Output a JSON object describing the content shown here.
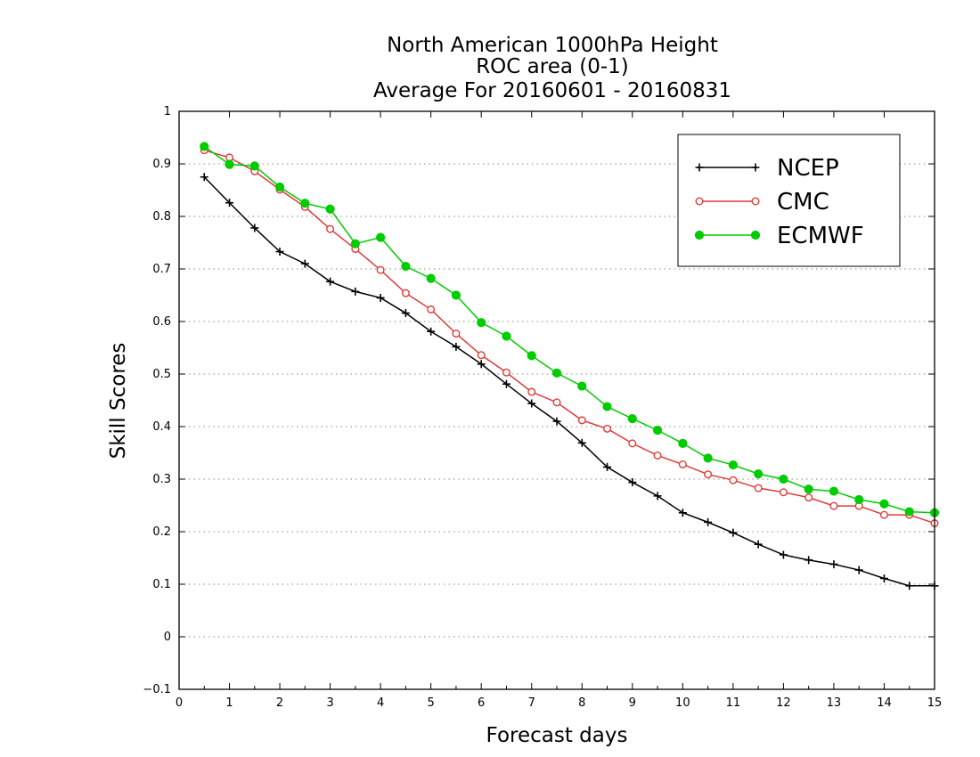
{
  "chart_data": {
    "type": "line",
    "title": [
      "North American 1000hPa Height",
      "ROC area (0-1)",
      "Average For 20160601 - 20160831"
    ],
    "xlabel": "Forecast days",
    "ylabel": "Skill Scores",
    "xlim": [
      0,
      15
    ],
    "ylim": [
      -0.1,
      1
    ],
    "xticks": [
      "0",
      "1",
      "2",
      "3",
      "4",
      "5",
      "6",
      "7",
      "8",
      "9",
      "10",
      "11",
      "12",
      "13",
      "14",
      "15"
    ],
    "yticks": [
      "−0.1",
      "0",
      "0.1",
      "0.2",
      "0.3",
      "0.4",
      "0.5",
      "0.6",
      "0.7",
      "0.8",
      "0.9",
      "1"
    ],
    "grid": "horizontal dotted",
    "legend_position": "top-right",
    "x": [
      0.5,
      1,
      1.5,
      2,
      2.5,
      3,
      3.5,
      4,
      4.5,
      5,
      5.5,
      6,
      6.5,
      7,
      7.5,
      8,
      8.5,
      9,
      9.5,
      10,
      10.5,
      11,
      11.5,
      12,
      12.5,
      13,
      13.5,
      14,
      14.5,
      15
    ],
    "series": [
      {
        "name": "NCEP",
        "color": "#000000",
        "marker": "plus",
        "values": [
          0.875,
          0.826,
          0.778,
          0.733,
          0.71,
          0.676,
          0.657,
          0.645,
          0.616,
          0.581,
          0.552,
          0.519,
          0.481,
          0.444,
          0.41,
          0.369,
          0.323,
          0.294,
          0.268,
          0.236,
          0.218,
          0.198,
          0.176,
          0.156,
          0.146,
          0.138,
          0.127,
          0.111,
          0.097,
          0.097
        ]
      },
      {
        "name": "CMC",
        "color": "#e23a3a",
        "marker": "open-circle",
        "values": [
          0.926,
          0.912,
          0.886,
          0.851,
          0.818,
          0.776,
          0.738,
          0.698,
          0.654,
          0.623,
          0.577,
          0.536,
          0.503,
          0.466,
          0.446,
          0.412,
          0.396,
          0.368,
          0.345,
          0.328,
          0.309,
          0.298,
          0.283,
          0.275,
          0.265,
          0.249,
          0.249,
          0.232,
          0.232,
          0.216
        ]
      },
      {
        "name": "ECMWF",
        "color": "#00cc00",
        "marker": "filled-circle",
        "values": [
          0.933,
          0.899,
          0.896,
          0.856,
          0.825,
          0.814,
          0.748,
          0.76,
          0.705,
          0.682,
          0.65,
          0.598,
          0.572,
          0.535,
          0.502,
          0.477,
          0.438,
          0.415,
          0.393,
          0.368,
          0.34,
          0.327,
          0.31,
          0.3,
          0.281,
          0.277,
          0.261,
          0.253,
          0.238,
          0.236
        ]
      }
    ]
  }
}
